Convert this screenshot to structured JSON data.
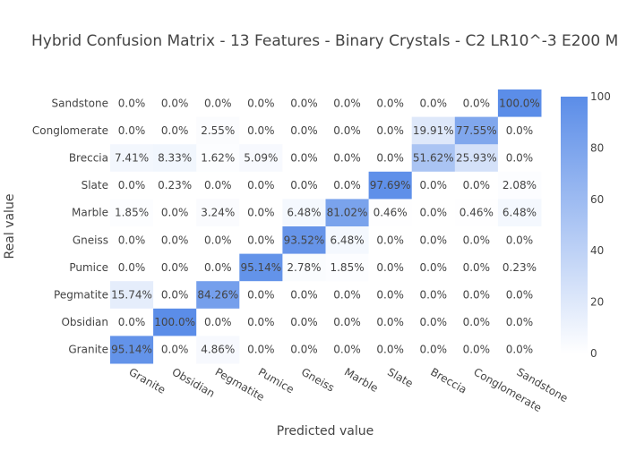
{
  "chart_data": {
    "type": "heatmap",
    "title": "Hybrid Confusion Matrix - 13 Features - Binary Crystals - C2 LR10^-3 E200 M",
    "xlabel": "Predicted value",
    "ylabel": "Real value",
    "x_categories": [
      "Granite",
      "Obsidian",
      "Pegmatite",
      "Pumice",
      "Gneiss",
      "Marble",
      "Slate",
      "Breccia",
      "Conglomerate",
      "Sandstone"
    ],
    "y_categories": [
      "Sandstone",
      "Conglomerate",
      "Breccia",
      "Slate",
      "Marble",
      "Gneiss",
      "Pumice",
      "Pegmatite",
      "Obsidian",
      "Granite"
    ],
    "values": [
      [
        0.0,
        0.0,
        0.0,
        0.0,
        0.0,
        0.0,
        0.0,
        0.0,
        0.0,
        100.0
      ],
      [
        0.0,
        0.0,
        2.55,
        0.0,
        0.0,
        0.0,
        0.0,
        19.91,
        77.55,
        0.0
      ],
      [
        7.41,
        8.33,
        1.62,
        5.09,
        0.0,
        0.0,
        0.0,
        51.62,
        25.93,
        0.0
      ],
      [
        0.0,
        0.23,
        0.0,
        0.0,
        0.0,
        0.0,
        97.69,
        0.0,
        0.0,
        2.08
      ],
      [
        1.85,
        0.0,
        3.24,
        0.0,
        6.48,
        81.02,
        0.46,
        0.0,
        0.46,
        6.48
      ],
      [
        0.0,
        0.0,
        0.0,
        0.0,
        93.52,
        6.48,
        0.0,
        0.0,
        0.0,
        0.0
      ],
      [
        0.0,
        0.0,
        0.0,
        95.14,
        2.78,
        1.85,
        0.0,
        0.0,
        0.0,
        0.23
      ],
      [
        15.74,
        0.0,
        84.26,
        0.0,
        0.0,
        0.0,
        0.0,
        0.0,
        0.0,
        0.0
      ],
      [
        0.0,
        100.0,
        0.0,
        0.0,
        0.0,
        0.0,
        0.0,
        0.0,
        0.0,
        0.0
      ],
      [
        95.14,
        0.0,
        4.86,
        0.0,
        0.0,
        0.0,
        0.0,
        0.0,
        0.0,
        0.0
      ]
    ],
    "value_suffix": "%",
    "colorscale": {
      "min": 0,
      "max": 100,
      "low_color": "#ffffff",
      "high_color": "#5b8de8"
    },
    "colorbar_ticks": [
      0,
      20,
      40,
      60,
      80,
      100
    ]
  }
}
